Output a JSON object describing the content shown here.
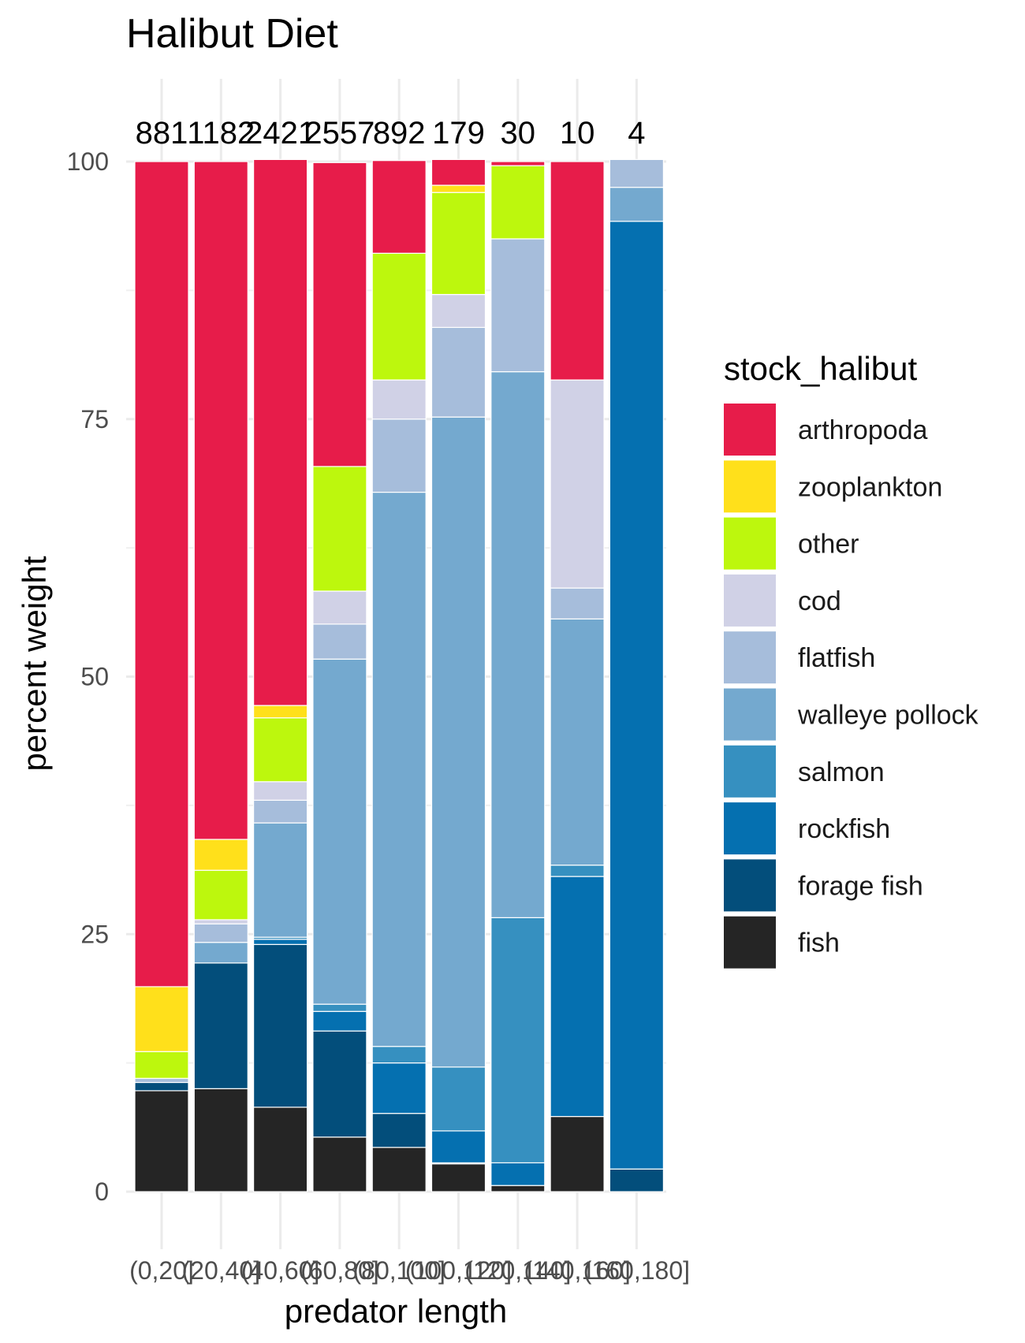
{
  "chart_data": {
    "type": "bar",
    "stacked": true,
    "title": "Halibut Diet",
    "xlabel": "predator length",
    "ylabel": "percent weight",
    "ylim": [
      0,
      100
    ],
    "yticks": [
      0,
      25,
      50,
      75,
      100
    ],
    "categories": [
      "(0,20]",
      "(20,40]",
      "(40,60]",
      "(60,80]",
      "(80,100]",
      "(100,120]",
      "(120,140]",
      "(140,160]",
      "(160,180]"
    ],
    "bar_counts": [
      "881",
      "1182",
      "2421",
      "2557",
      "892",
      "179",
      "30",
      "10",
      "4"
    ],
    "legend_title": "stock_halibut",
    "legend_position": "right",
    "grid": true,
    "series": [
      {
        "name": "fish",
        "color": "#252525",
        "values": [
          9.8,
          10.0,
          8.2,
          5.3,
          4.3,
          2.7,
          0.6,
          7.3,
          0
        ]
      },
      {
        "name": "forage fish",
        "color": "#034e7b",
        "values": [
          0.8,
          12.2,
          15.8,
          10.3,
          3.3,
          0.1,
          0,
          0,
          2.2
        ]
      },
      {
        "name": "rockfish",
        "color": "#0570b0",
        "values": [
          0,
          0,
          0.5,
          1.9,
          4.9,
          3.1,
          2.2,
          23.3,
          92.0
        ]
      },
      {
        "name": "salmon",
        "color": "#3690c0",
        "values": [
          0,
          0,
          0.2,
          0.7,
          1.6,
          6.2,
          23.8,
          1.1,
          0
        ]
      },
      {
        "name": "walleye pollock",
        "color": "#74a9cf",
        "values": [
          0,
          2.0,
          11.1,
          33.5,
          53.8,
          63.1,
          53.0,
          23.9,
          3.3
        ]
      },
      {
        "name": "flatfish",
        "color": "#a6bddb",
        "values": [
          0.4,
          1.8,
          2.2,
          3.4,
          7.1,
          8.7,
          12.9,
          3.0,
          2.7
        ]
      },
      {
        "name": "cod",
        "color": "#d0d1e6",
        "values": [
          0,
          0.4,
          1.8,
          3.2,
          3.8,
          3.2,
          0,
          20.2,
          0
        ]
      },
      {
        "name": "other",
        "color": "#bdf70d",
        "values": [
          2.6,
          4.8,
          6.2,
          12.1,
          12.3,
          9.9,
          7.1,
          0,
          0
        ]
      },
      {
        "name": "zooplankton",
        "color": "#ffe01b",
        "values": [
          6.3,
          3.0,
          1.2,
          0,
          0,
          0.7,
          0,
          0,
          0
        ]
      },
      {
        "name": "arthropoda",
        "color": "#e71c4a",
        "values": [
          80.1,
          65.8,
          53.0,
          29.5,
          9.0,
          2.5,
          0.4,
          21.2,
          0
        ]
      }
    ],
    "legend_order": [
      "arthropoda",
      "zooplankton",
      "other",
      "cod",
      "flatfish",
      "walleye pollock",
      "salmon",
      "rockfish",
      "forage fish",
      "fish"
    ]
  }
}
